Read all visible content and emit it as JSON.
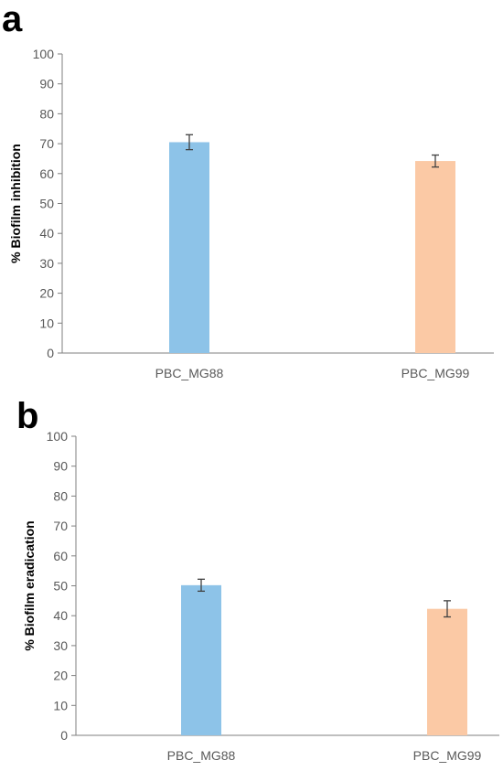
{
  "chart_data": [
    {
      "type": "bar",
      "panel_label": "a",
      "categories": [
        "PBC_MG88",
        "PBC_MG99"
      ],
      "values": [
        70.5,
        64.2
      ],
      "error": [
        2.5,
        2.0
      ],
      "colors": [
        "#8DC3E8",
        "#FBC9A5"
      ],
      "ylabel": "% Biofilm inhibition",
      "ylim": [
        0,
        100
      ],
      "ytick_labels": [
        "0",
        "10",
        "20",
        "30",
        "40",
        "50",
        "60",
        "70",
        "80",
        "90",
        "100"
      ],
      "grid": false
    },
    {
      "type": "bar",
      "panel_label": "b",
      "categories": [
        "PBC_MG88",
        "PBC_MG99"
      ],
      "values": [
        50.2,
        42.3
      ],
      "error": [
        2.0,
        2.7
      ],
      "colors": [
        "#8DC3E8",
        "#FBC9A5"
      ],
      "ylabel": "% Biofilm eradication",
      "ylim": [
        0,
        100
      ],
      "ytick_labels": [
        "0",
        "10",
        "20",
        "30",
        "40",
        "50",
        "60",
        "70",
        "80",
        "90",
        "100"
      ],
      "grid": false
    }
  ]
}
